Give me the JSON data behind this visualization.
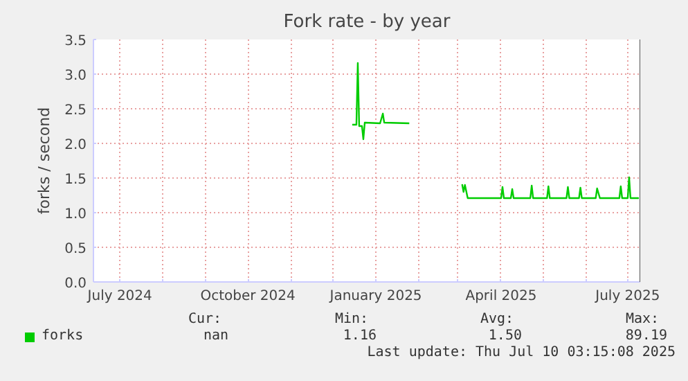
{
  "chart_data": {
    "type": "line",
    "title": "Fork rate - by year",
    "ylabel": "forks / second",
    "series": [
      {
        "name": "forks",
        "color": "#00cc00",
        "x": [
          "2024-12-15",
          "2024-12-18",
          "2024-12-19",
          "2024-12-20",
          "2024-12-22",
          "2024-12-23",
          "2024-12-24",
          "2025-01-04",
          "2025-01-06",
          "2025-01-07",
          "2025-01-25",
          "2025-02-10",
          "2025-03-04",
          "2025-03-05",
          "2025-03-06",
          "2025-03-08",
          "2025-04-01",
          "2025-04-02",
          "2025-04-03",
          "2025-04-08",
          "2025-04-09",
          "2025-04-10",
          "2025-04-22",
          "2025-04-23",
          "2025-04-24",
          "2025-05-04",
          "2025-05-05",
          "2025-05-06",
          "2025-05-18",
          "2025-05-19",
          "2025-05-20",
          "2025-05-27",
          "2025-05-28",
          "2025-05-29",
          "2025-06-08",
          "2025-06-09",
          "2025-06-11",
          "2025-06-25",
          "2025-06-26",
          "2025-06-27",
          "2025-07-01",
          "2025-07-02",
          "2025-07-03",
          "2025-07-09"
        ],
        "values": [
          2.27,
          2.27,
          3.16,
          2.25,
          2.25,
          2.06,
          2.3,
          2.29,
          2.43,
          2.3,
          2.29,
          null,
          1.41,
          1.3,
          1.4,
          1.21,
          1.21,
          1.37,
          1.21,
          1.21,
          1.34,
          1.21,
          1.21,
          1.39,
          1.21,
          1.21,
          1.38,
          1.21,
          1.21,
          1.37,
          1.21,
          1.21,
          1.36,
          1.21,
          1.21,
          1.35,
          1.21,
          1.21,
          1.38,
          1.21,
          1.21,
          1.51,
          1.21,
          1.21
        ]
      }
    ],
    "xlim": [
      "2024-06-12",
      "2025-07-10"
    ],
    "xticks": [
      {
        "value": "2024-07-01",
        "label": "July 2024"
      },
      {
        "value": "2024-08-01",
        "label": null
      },
      {
        "value": "2024-09-01",
        "label": null
      },
      {
        "value": "2024-10-01",
        "label": "October 2024"
      },
      {
        "value": "2024-11-01",
        "label": null
      },
      {
        "value": "2024-12-01",
        "label": null
      },
      {
        "value": "2025-01-01",
        "label": "January 2025"
      },
      {
        "value": "2025-02-01",
        "label": null
      },
      {
        "value": "2025-03-01",
        "label": null
      },
      {
        "value": "2025-04-01",
        "label": "April 2025"
      },
      {
        "value": "2025-05-01",
        "label": null
      },
      {
        "value": "2025-06-01",
        "label": null
      },
      {
        "value": "2025-07-01",
        "label": "July 2025"
      }
    ],
    "ylim": [
      0,
      3.5
    ],
    "yticks": [
      {
        "value": 0,
        "label": "0.0"
      },
      0.5,
      {
        "value": 1,
        "label": "1.0"
      },
      1.5,
      {
        "value": 2,
        "label": "2.0"
      },
      2.5,
      {
        "value": 3,
        "label": "3.0"
      },
      3.5
    ],
    "ref_lines": [
      {
        "axis": "x",
        "value": "2025-07-10",
        "label": null,
        "color": "#555555"
      }
    ],
    "grid": true,
    "legend": "bottom",
    "line_style": "solid",
    "marker": "none",
    "annotations": [
      "Cur:",
      "nan",
      "Min:",
      "1.16",
      "Avg:",
      "1.50",
      "Max:",
      "89.19",
      "Last update: Thu Jul 10 03:15:08 2025"
    ]
  }
}
